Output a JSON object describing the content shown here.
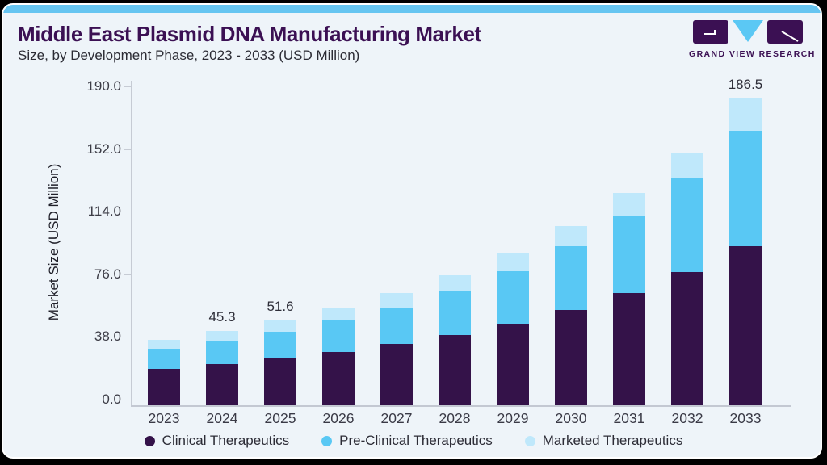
{
  "page": {
    "title": "Middle East Plasmid DNA Manufacturing Market",
    "subtitle": "Size, by Development Phase, 2023 - 2033 (USD Million)"
  },
  "logo": {
    "text": "GRAND VIEW RESEARCH"
  },
  "colors": {
    "accent_bar": "#66c5f1",
    "card_bg": "#eef4f9",
    "title_purple": "#3b1053",
    "logo_purple": "#3b1053",
    "logo_triangle": "#5bc8f4",
    "axis_line": "#c6cbd4"
  },
  "chart_data": {
    "type": "bar",
    "stacked": true,
    "title": "Middle East Plasmid DNA Manufacturing Market Size, by Development Phase, 2023 - 2033 (USD Million)",
    "ylabel": "Market Size (USD Million)",
    "ylim": [
      0,
      190
    ],
    "grid": false,
    "legend_position": "bottom",
    "categories": [
      "2023",
      "2024",
      "2025",
      "2026",
      "2027",
      "2028",
      "2029",
      "2030",
      "2031",
      "2032",
      "2033"
    ],
    "series": [
      {
        "name": "Clinical Therapeutics",
        "color": "#341249",
        "values": [
          22.1,
          24.9,
          28.4,
          32.2,
          37.1,
          42.6,
          49.4,
          57.9,
          68.0,
          81.0,
          96.6
        ]
      },
      {
        "name": "Pre-Clinical Therapeutics",
        "color": "#59c8f4",
        "values": [
          12.3,
          14.1,
          16.1,
          19.2,
          22.4,
          27.0,
          32.1,
          38.8,
          47.3,
          57.0,
          69.9
        ]
      },
      {
        "name": "Marketed Therapeutics",
        "color": "#bfe8fb",
        "values": [
          5.4,
          6.3,
          7.1,
          7.6,
          8.5,
          9.4,
          10.8,
          11.9,
          13.5,
          15.5,
          20.0
        ]
      }
    ],
    "totals": [
      39.8,
      45.3,
      51.6,
      59.0,
      68.0,
      79.0,
      92.3,
      108.6,
      128.8,
      153.5,
      186.5
    ],
    "bar_labels": [
      "",
      "45.3",
      "51.6",
      "",
      "",
      "",
      "",
      "",
      "",
      "",
      "186.5"
    ],
    "yticks": [
      "0.0",
      "38.0",
      "76.0",
      "114.0",
      "152.0",
      "190.0"
    ]
  }
}
